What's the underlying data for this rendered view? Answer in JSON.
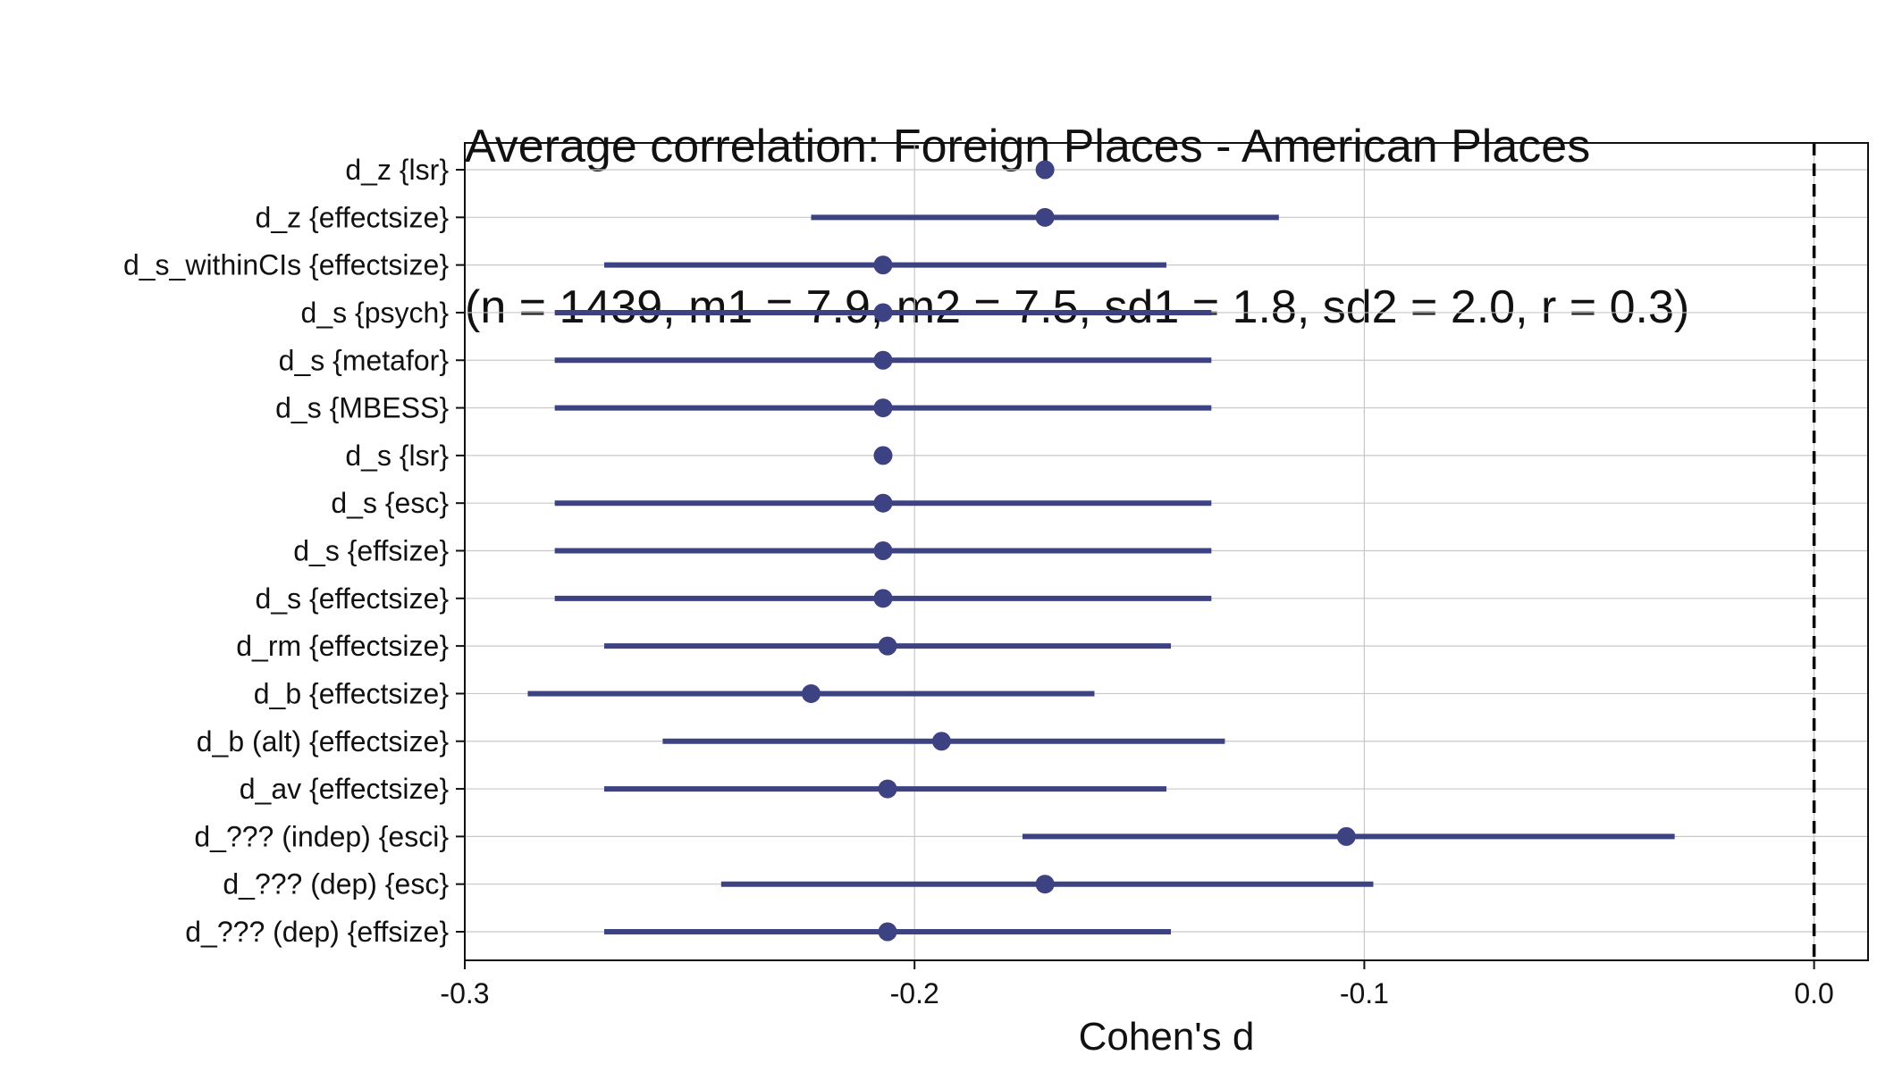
{
  "chart_data": {
    "type": "forest",
    "title_lines": [
      "Average correlation: Foreign Places - American Places",
      "(n = 1439, m1 = 7.9, m2 = 7.5, sd1 = 1.8, sd2 = 2.0, r = 0.3)"
    ],
    "xlabel": "Cohen's d",
    "ylabel": "",
    "xlim": [
      -0.3,
      0.012
    ],
    "xticks": [
      -0.3,
      -0.2,
      -0.1,
      0.0
    ],
    "xtick_labels": [
      "-0.3",
      "-0.2",
      "-0.1",
      "0.0"
    ],
    "reference_line": 0.0,
    "grid": true,
    "colors": {
      "point": "#3d4283",
      "interval": "#3d4283",
      "grid": "#c8c8c8",
      "reference": "#000000"
    },
    "series": [
      {
        "label": "d_z {lsr}",
        "estimate": -0.171,
        "lower": null,
        "upper": null
      },
      {
        "label": "d_z {effectsize}",
        "estimate": -0.171,
        "lower": -0.223,
        "upper": -0.119
      },
      {
        "label": "d_s_withinCIs {effectsize}",
        "estimate": -0.207,
        "lower": -0.269,
        "upper": -0.144
      },
      {
        "label": "d_s {psych}",
        "estimate": -0.207,
        "lower": -0.28,
        "upper": -0.134
      },
      {
        "label": "d_s {metafor}",
        "estimate": -0.207,
        "lower": -0.28,
        "upper": -0.134
      },
      {
        "label": "d_s {MBESS}",
        "estimate": -0.207,
        "lower": -0.28,
        "upper": -0.134
      },
      {
        "label": "d_s {lsr}",
        "estimate": -0.207,
        "lower": null,
        "upper": null
      },
      {
        "label": "d_s {esc}",
        "estimate": -0.207,
        "lower": -0.28,
        "upper": -0.134
      },
      {
        "label": "d_s {effsize}",
        "estimate": -0.207,
        "lower": -0.28,
        "upper": -0.134
      },
      {
        "label": "d_s {effectsize}",
        "estimate": -0.207,
        "lower": -0.28,
        "upper": -0.134
      },
      {
        "label": "d_rm {effectsize}",
        "estimate": -0.206,
        "lower": -0.269,
        "upper": -0.143
      },
      {
        "label": "d_b {effectsize}",
        "estimate": -0.223,
        "lower": -0.286,
        "upper": -0.16
      },
      {
        "label": "d_b (alt) {effectsize}",
        "estimate": -0.194,
        "lower": -0.256,
        "upper": -0.131
      },
      {
        "label": "d_av {effectsize}",
        "estimate": -0.206,
        "lower": -0.269,
        "upper": -0.144
      },
      {
        "label": "d_??? (indep) {esci}",
        "estimate": -0.104,
        "lower": -0.176,
        "upper": -0.031
      },
      {
        "label": "d_??? (dep) {esc}",
        "estimate": -0.171,
        "lower": -0.243,
        "upper": -0.098
      },
      {
        "label": "d_??? (dep) {effsize}",
        "estimate": -0.206,
        "lower": -0.269,
        "upper": -0.143
      }
    ]
  }
}
